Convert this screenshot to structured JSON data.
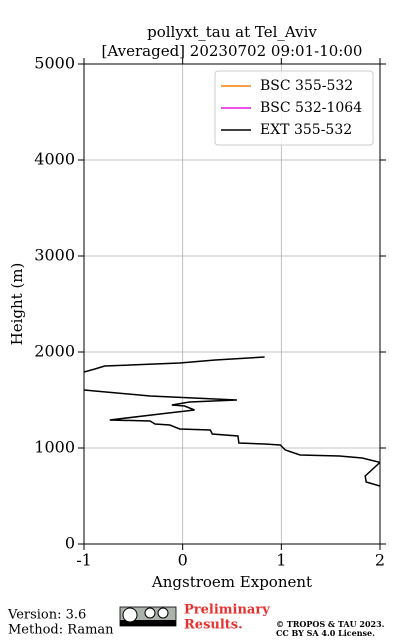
{
  "chart_data": {
    "type": "line",
    "title": "pollyxt_tau at Tel_Aviv",
    "subtitle": "[Averaged] 20230702 09:01-10:00",
    "x_label": "Angstroem Exponent",
    "y_label": "Height (m)",
    "xlim": [
      -1,
      2
    ],
    "xticks": [
      -1,
      0,
      1,
      2
    ],
    "ylim": [
      0,
      5000
    ],
    "yticks": [
      0,
      1000,
      2000,
      3000,
      4000,
      5000
    ],
    "grid": true,
    "legend": "upper right",
    "series": [
      {
        "name": "BSC 355-532",
        "color": "#ff7f0e",
        "x": [],
        "y": []
      },
      {
        "name": "BSC 532-1064",
        "color": "#e619e6",
        "x": [],
        "y": []
      },
      {
        "name": "EXT 355-532",
        "color": "#000000",
        "x": [
          2,
          1.86,
          1.85,
          2,
          1.82,
          1.59,
          1.19,
          1.04,
          0.99,
          0.83,
          0.57,
          0.56,
          0.3,
          0.28,
          -0.03,
          -0.13,
          -0.28,
          -0.33,
          -0.74,
          -0.23,
          0.12,
          0.02,
          -0.11,
          0.07,
          0.55,
          -0.33,
          -0.89,
          -1,
          null,
          -1,
          -0.89,
          -0.79,
          -0.03,
          0.33,
          0.83
        ],
        "y": [
          604,
          646,
          708,
          850,
          896,
          917,
          927,
          979,
          1031,
          1042,
          1052,
          1125,
          1146,
          1188,
          1198,
          1240,
          1250,
          1281,
          1292,
          1354,
          1396,
          1438,
          1448,
          1479,
          1500,
          1542,
          1594,
          1604,
          null,
          1792,
          1823,
          1854,
          1885,
          1917,
          1948
        ]
      }
    ]
  },
  "footer": {
    "version": "Version: 3.6",
    "method": "Method: Raman",
    "preliminary": "Preliminary Results.",
    "copyright": "© TROPOS & TAU 2023.",
    "license": "CC BY SA 4.0 License."
  }
}
